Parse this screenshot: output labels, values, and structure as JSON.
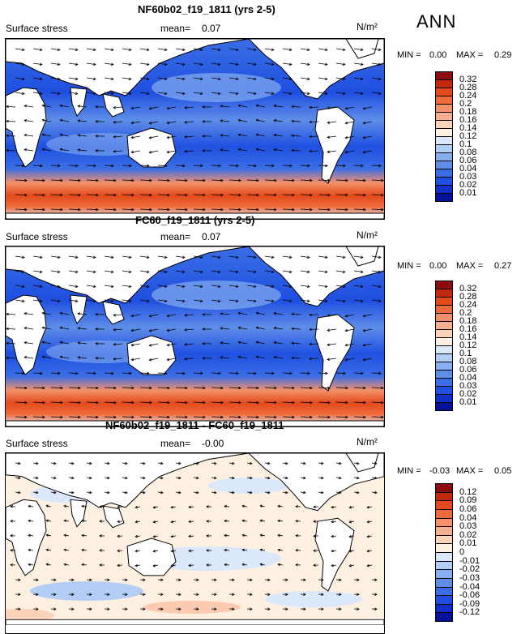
{
  "season": "ANN",
  "units": "N/m²",
  "panels": [
    {
      "title": "NF60b02_f19_1811 (yrs 2-5)",
      "field": "Surface stress",
      "mean_label": "mean=",
      "mean_value": "0.07",
      "min_label": "MIN =",
      "min_value": "0.00",
      "max_label": "MAX =",
      "max_value": "0.29",
      "levels": [
        "0.32",
        "0.28",
        "0.24",
        "0.2",
        "0.18",
        "0.16",
        "0.14",
        "0.12",
        "0.1",
        "0.08",
        "0.06",
        "0.04",
        "0.03",
        "0.02",
        "0.01"
      ],
      "colors": [
        "#8c0d0d",
        "#c1290d",
        "#e34a1c",
        "#f06b3a",
        "#f5906a",
        "#f8b090",
        "#fbd3b8",
        "#fef0e0",
        "#dbe8fb",
        "#b4cdf5",
        "#86aef0",
        "#5e8ee8",
        "#3a6ee6",
        "#1f4fe0",
        "#1030c8",
        "#06129a"
      ]
    },
    {
      "title": "FC60_f19_1811 (yrs 2-5)",
      "field": "Surface stress",
      "mean_label": "mean=",
      "mean_value": "0.07",
      "min_label": "MIN =",
      "min_value": "0.00",
      "max_label": "MAX =",
      "max_value": "0.27",
      "levels": [
        "0.32",
        "0.28",
        "0.24",
        "0.2",
        "0.18",
        "0.16",
        "0.14",
        "0.12",
        "0.1",
        "0.08",
        "0.06",
        "0.04",
        "0.03",
        "0.02",
        "0.01"
      ],
      "colors": [
        "#8c0d0d",
        "#c1290d",
        "#e34a1c",
        "#f06b3a",
        "#f5906a",
        "#f8b090",
        "#fbd3b8",
        "#fef0e0",
        "#dbe8fb",
        "#b4cdf5",
        "#86aef0",
        "#5e8ee8",
        "#3a6ee6",
        "#1f4fe0",
        "#1030c8",
        "#06129a"
      ]
    },
    {
      "title": "NF60b02_f19_1811 - FC60_f19_1811",
      "field": "Surface stress",
      "mean_label": "mean=",
      "mean_value": "-0.00",
      "min_label": "MIN =",
      "min_value": "-0.03",
      "max_label": "MAX =",
      "max_value": "0.05",
      "levels": [
        "0.12",
        "0.09",
        "0.06",
        "0.04",
        "0.03",
        "0.02",
        "0.01",
        "0",
        "-0.01",
        "-0.02",
        "-0.03",
        "-0.04",
        "-0.06",
        "-0.09",
        "-0.12"
      ],
      "colors": [
        "#8c0d0d",
        "#c1290d",
        "#e34a1c",
        "#f06b3a",
        "#f5906a",
        "#f8b090",
        "#fbd3b8",
        "#fef0e0",
        "#dbe8fb",
        "#b4cdf5",
        "#86aef0",
        "#5e8ee8",
        "#3a6ee6",
        "#1f4fe0",
        "#1030c8",
        "#06129a"
      ]
    }
  ],
  "chart_data": {
    "type": "heatmap",
    "panel_count": 3,
    "variable": "Surface stress",
    "units": "N/m²",
    "season": "ANN"
  }
}
